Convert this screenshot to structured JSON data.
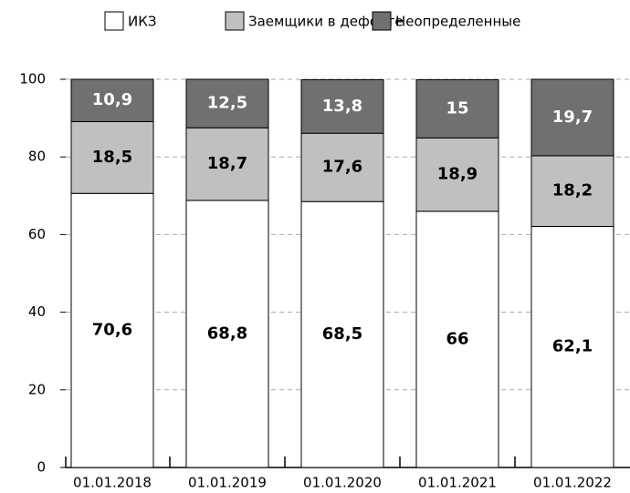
{
  "chart_data": {
    "type": "stacked_bar",
    "categories": [
      "01.01.2018",
      "01.01.2019",
      "01.01.2020",
      "01.01.2021",
      "01.01.2022"
    ],
    "series": [
      {
        "name": "ИКЗ",
        "color": "#ffffff",
        "values": [
          70.6,
          68.8,
          68.5,
          66,
          62.1
        ],
        "value_labels": [
          "70,6",
          "68,8",
          "68,5",
          "66",
          "62,1"
        ]
      },
      {
        "name": "Заемщики в дефолте",
        "color": "#c0c0c0",
        "values": [
          18.5,
          18.7,
          17.6,
          18.9,
          18.2
        ],
        "value_labels": [
          "18,5",
          "18,7",
          "17,6",
          "18,9",
          "18,2"
        ]
      },
      {
        "name": "Неопределенные",
        "color": "#707070",
        "values": [
          10.9,
          12.5,
          13.8,
          15,
          19.7
        ],
        "value_labels": [
          "10,9",
          "12,5",
          "13,8",
          "15",
          "19,7"
        ]
      }
    ],
    "ylim": [
      0,
      100
    ],
    "yticks": [
      0,
      20,
      40,
      60,
      80,
      100
    ],
    "grid": true,
    "legend": "top"
  }
}
